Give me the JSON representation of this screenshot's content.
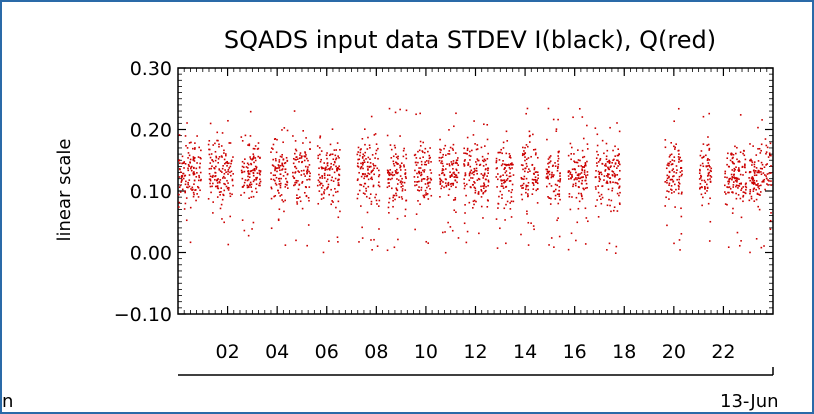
{
  "chart_data": {
    "type": "scatter",
    "title": "SQADS input data STDEV I(black), Q(red)",
    "ylabel": "linear scale",
    "xlabel": "",
    "date_label": "13-Jun",
    "left_edge_label": "n",
    "ylim": [
      -0.1,
      0.3
    ],
    "xlim": [
      0,
      24
    ],
    "yticks": [
      "0.30",
      "0.20",
      "0.10",
      "0.00",
      "−0.10"
    ],
    "yticks_values": [
      0.3,
      0.2,
      0.1,
      0.0,
      -0.1
    ],
    "xticks": [
      "02",
      "04",
      "06",
      "08",
      "10",
      "12",
      "14",
      "16",
      "18",
      "20",
      "22"
    ],
    "xticks_values": [
      2,
      4,
      6,
      8,
      10,
      12,
      14,
      16,
      18,
      20,
      22
    ],
    "grid": false,
    "series": [
      {
        "name": "Q",
        "color": "#cc0000",
        "segments": [
          {
            "start": 0.0,
            "end": 0.9
          },
          {
            "start": 1.2,
            "end": 2.2
          },
          {
            "start": 2.5,
            "end": 3.3
          },
          {
            "start": 3.7,
            "end": 4.4
          },
          {
            "start": 4.6,
            "end": 5.3
          },
          {
            "start": 5.6,
            "end": 6.5
          },
          {
            "start": 7.2,
            "end": 8.1
          },
          {
            "start": 8.4,
            "end": 9.2
          },
          {
            "start": 9.5,
            "end": 10.2
          },
          {
            "start": 10.5,
            "end": 11.3
          },
          {
            "start": 11.5,
            "end": 12.5
          },
          {
            "start": 12.8,
            "end": 13.5
          },
          {
            "start": 13.8,
            "end": 14.5
          },
          {
            "start": 14.8,
            "end": 15.4
          },
          {
            "start": 15.7,
            "end": 16.5
          },
          {
            "start": 16.8,
            "end": 17.8
          },
          {
            "start": 19.6,
            "end": 20.3
          },
          {
            "start": 21.0,
            "end": 21.5
          },
          {
            "start": 22.0,
            "end": 22.9
          },
          {
            "start": 23.0,
            "end": 23.9
          }
        ],
        "typical": 0.13,
        "spread": 0.025,
        "max_outlier": 0.24,
        "min_outlier": 0.0
      }
    ]
  }
}
